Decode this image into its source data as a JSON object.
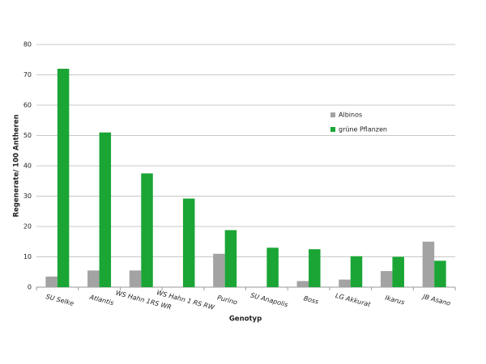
{
  "chart_data": {
    "type": "bar",
    "x_label": "Genotyp",
    "y_label": "Regenerate/ 100 Antheren",
    "categories": [
      "SU Selke",
      "Atlantis",
      "WS Hahn 1RS WR",
      "WS Hahn 1 RS RW",
      "Purino",
      "SU Anapolis",
      "Boss",
      "LG Akkurat",
      "Ikarus",
      "JB Asano"
    ],
    "series": [
      {
        "name": "Albinos",
        "color": "#a3a3a3",
        "values": [
          3.5,
          5.5,
          5.5,
          0,
          11,
          0,
          2,
          2.5,
          5.3,
          15
        ]
      },
      {
        "name": "grüne Pflanzen",
        "color": "#1aa535",
        "values": [
          72,
          51,
          37.5,
          29.2,
          18.8,
          13,
          12.5,
          10.2,
          10,
          8.7
        ]
      }
    ],
    "ylim": [
      0,
      80
    ],
    "yticks": [
      0,
      10,
      20,
      30,
      40,
      50,
      60,
      70,
      80
    ],
    "grid": true,
    "legend": "right"
  }
}
